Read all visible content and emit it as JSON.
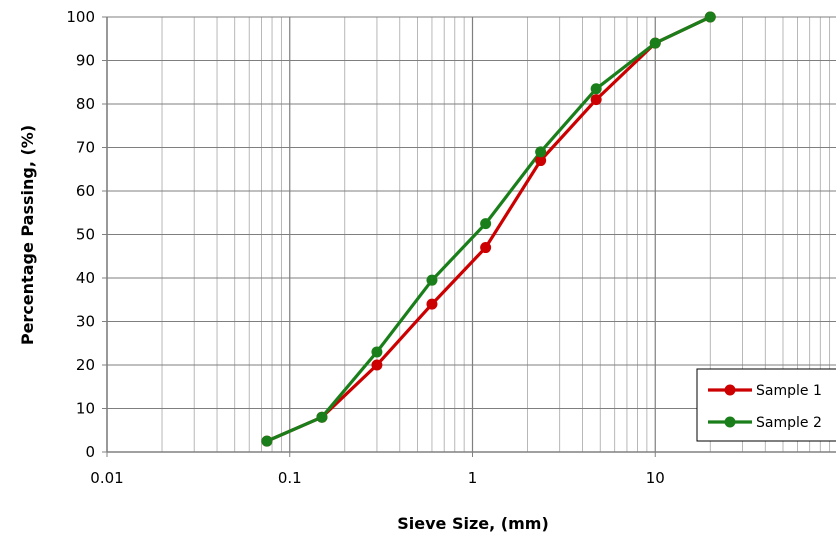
{
  "chart_data": {
    "type": "line",
    "title": "",
    "xlabel": "Sieve Size, (mm)",
    "ylabel": "Percentage Passing, (%)",
    "xscale": "log",
    "xlim": [
      0.01,
      100
    ],
    "ylim": [
      0,
      100
    ],
    "x_ticks": [
      0.01,
      0.1,
      1,
      10
    ],
    "x_tick_labels": [
      "0.01",
      "0.1",
      "1",
      "10"
    ],
    "y_ticks": [
      0,
      10,
      20,
      30,
      40,
      50,
      60,
      70,
      80,
      90,
      100
    ],
    "y_tick_labels": [
      "0",
      "10",
      "20",
      "30",
      "40",
      "50",
      "60",
      "70",
      "80",
      "90",
      "100"
    ],
    "grid": true,
    "legend_position": "bottom-right",
    "series": [
      {
        "name": "Sample 1",
        "color": "#cc0000",
        "x": [
          0.075,
          0.15,
          0.3,
          0.6,
          1.18,
          2.36,
          4.75,
          10,
          20
        ],
        "y": [
          2.5,
          8,
          20,
          34,
          47,
          67,
          81,
          94,
          100
        ]
      },
      {
        "name": "Sample 2",
        "color": "#1a7f1a",
        "x": [
          0.075,
          0.15,
          0.3,
          0.6,
          1.18,
          2.36,
          4.75,
          10,
          20
        ],
        "y": [
          2.5,
          8,
          23,
          39.5,
          52.5,
          69,
          83.5,
          94,
          100
        ]
      }
    ]
  }
}
